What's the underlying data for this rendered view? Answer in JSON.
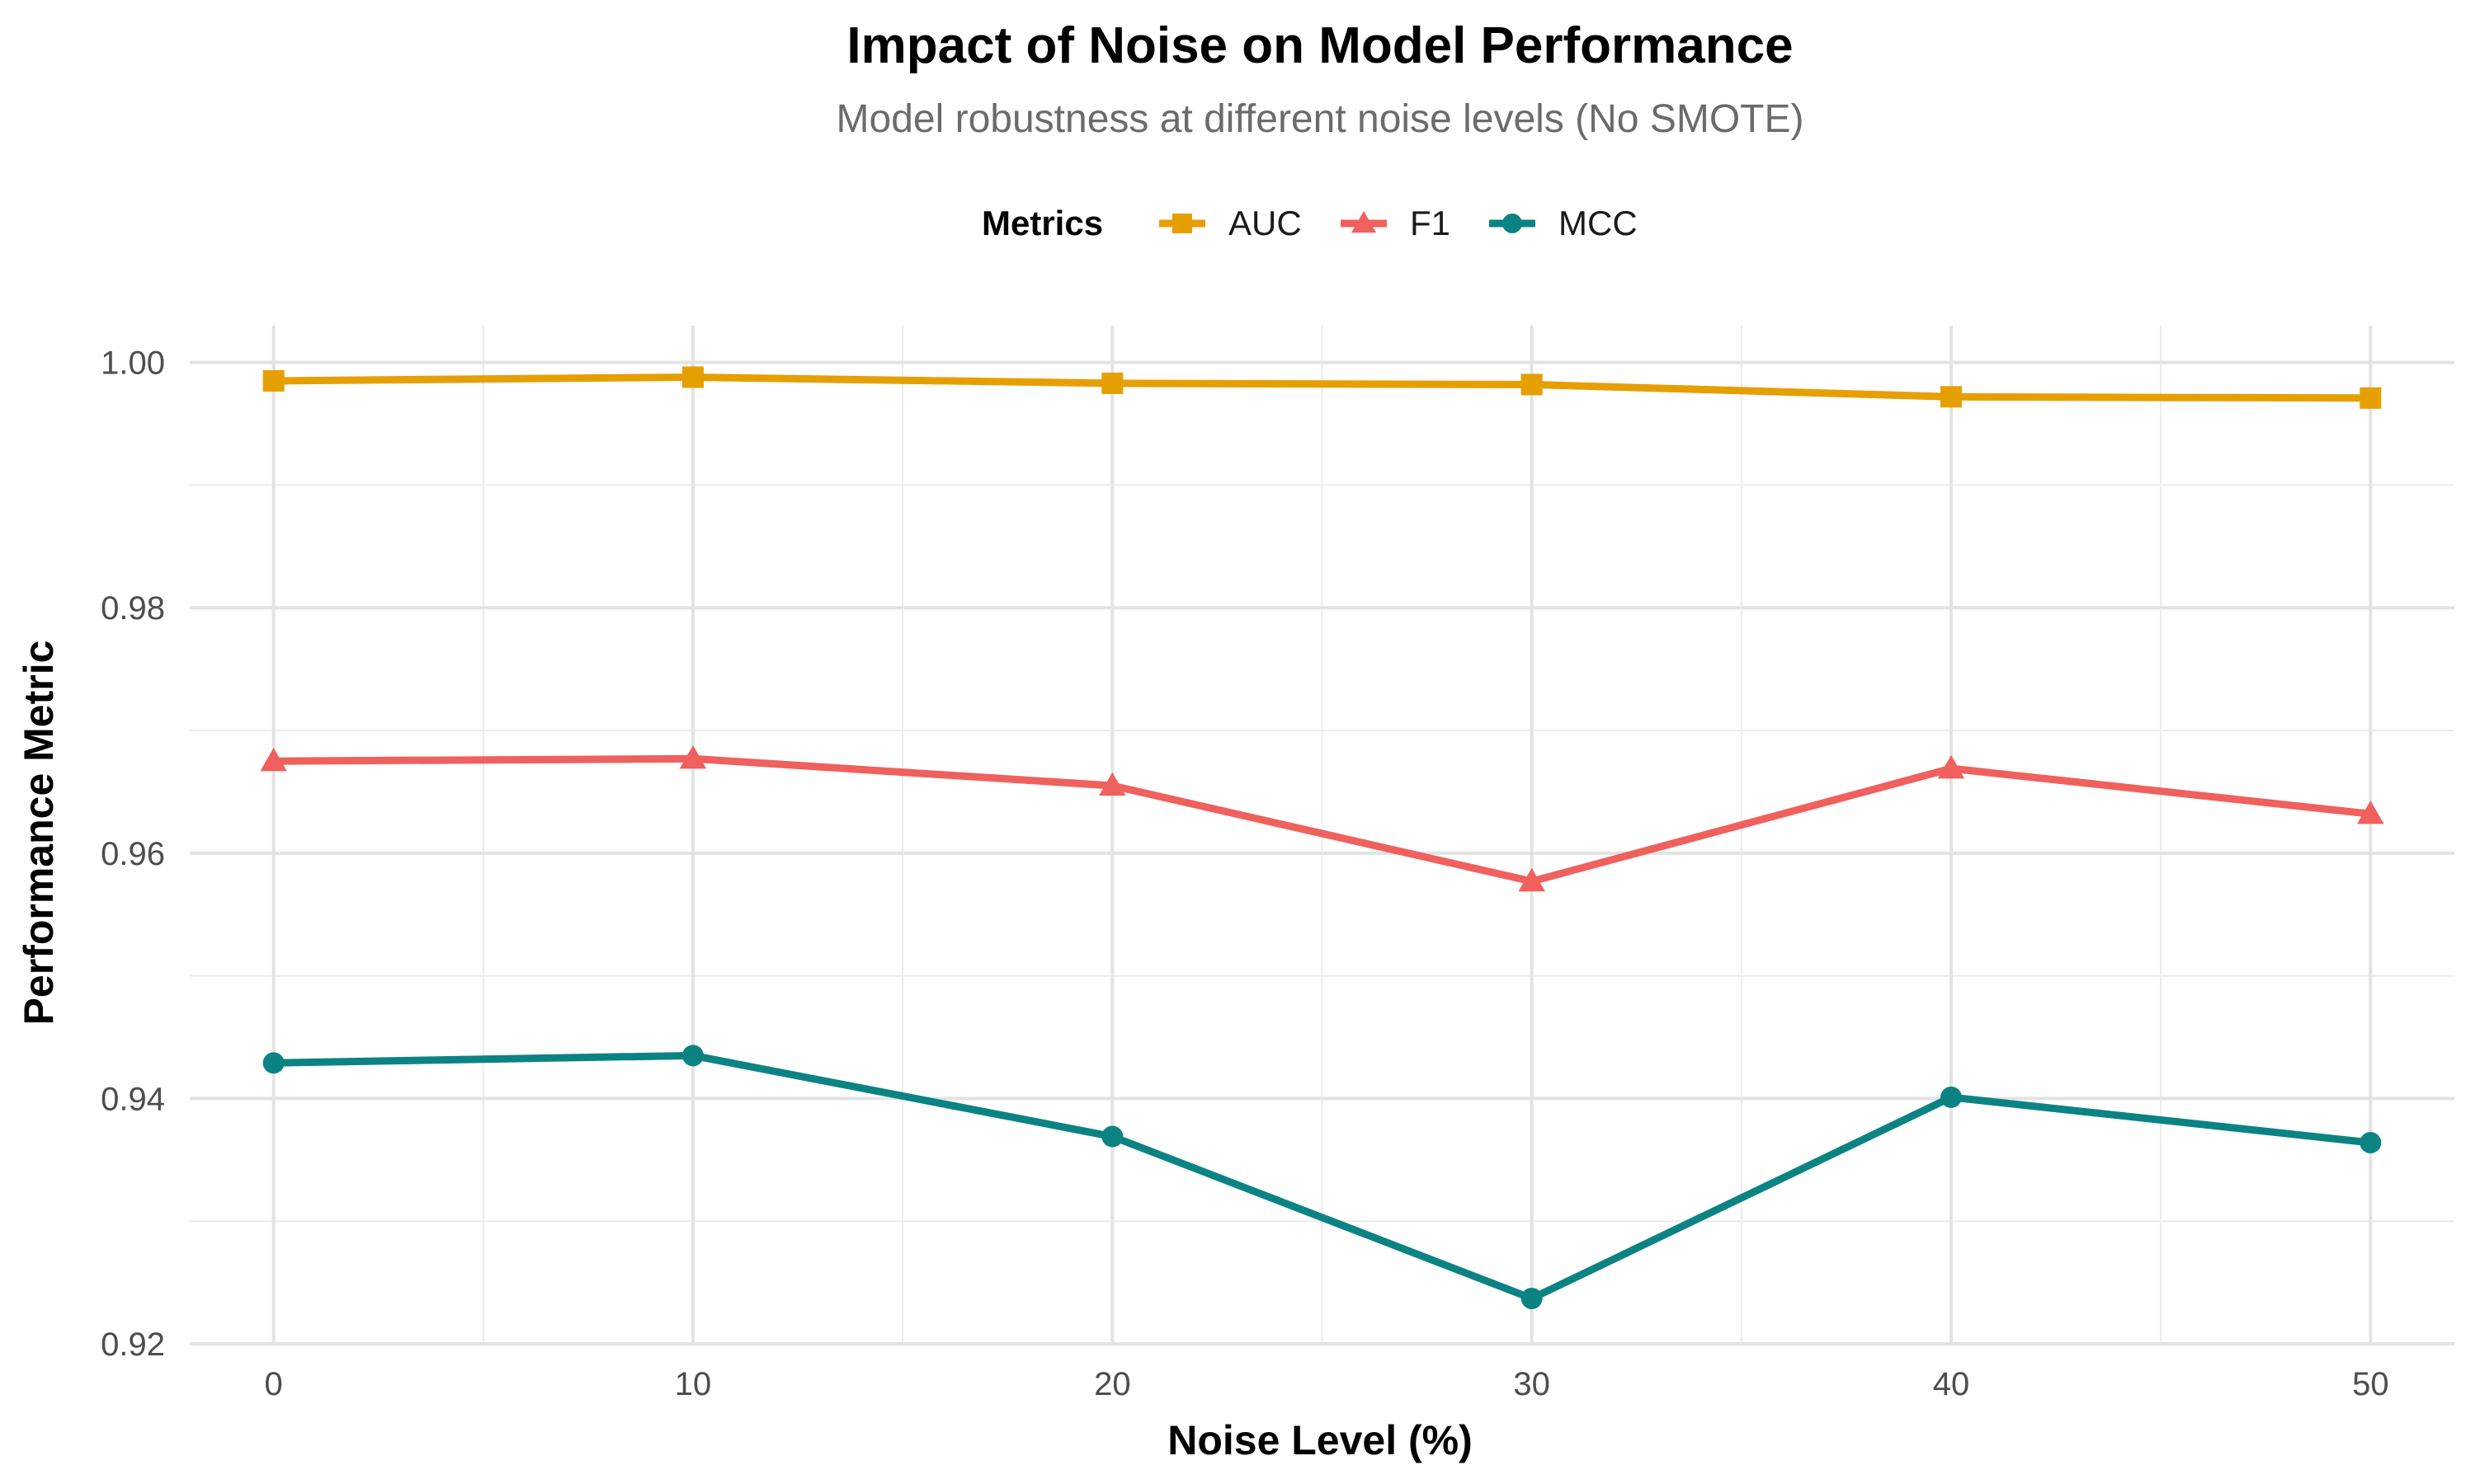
{
  "chart_data": {
    "type": "line",
    "title": "Impact of Noise on Model Performance",
    "subtitle": "Model robustness at different noise levels (No SMOTE)",
    "xlabel": "Noise Level (%)",
    "ylabel": "Performance Metric",
    "x": [
      0,
      10,
      20,
      30,
      40,
      50
    ],
    "x_ticks": [
      "0",
      "10",
      "20",
      "30",
      "40",
      "50"
    ],
    "y_ticks": [
      "0.92",
      "0.94",
      "0.96",
      "0.98",
      "1.00"
    ],
    "xlim": [
      -2,
      52
    ],
    "ylim": [
      0.92,
      1.003
    ],
    "grid": true,
    "legend": {
      "title": "Metrics",
      "position": "top"
    },
    "series": [
      {
        "name": "AUC",
        "color": "#E69F00",
        "marker": "square",
        "values": [
          0.9985,
          0.9988,
          0.9983,
          0.9982,
          0.9972,
          0.9971
        ]
      },
      {
        "name": "F1",
        "color": "#F0605D",
        "marker": "triangle",
        "values": [
          0.9675,
          0.9677,
          0.9655,
          0.9577,
          0.9669,
          0.9632
        ]
      },
      {
        "name": "MCC",
        "color": "#0C8383",
        "marker": "circle",
        "values": [
          0.9429,
          0.9435,
          0.9369,
          0.9237,
          0.9401,
          0.9364
        ]
      }
    ]
  }
}
